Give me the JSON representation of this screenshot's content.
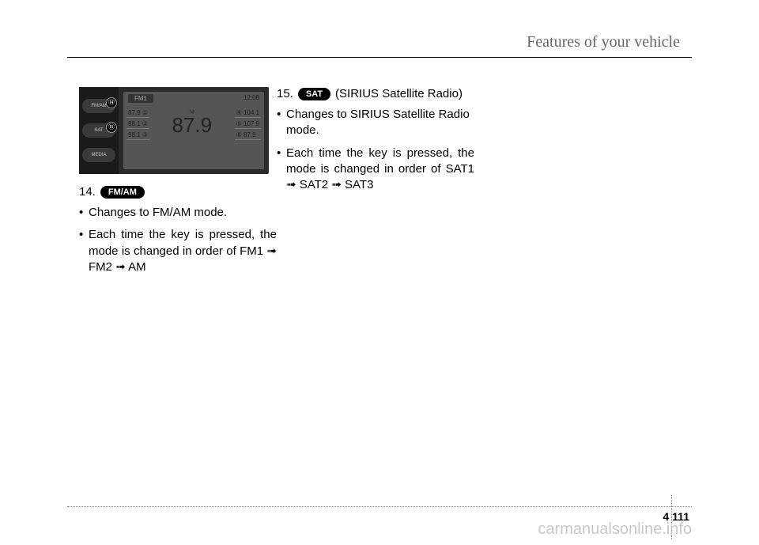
{
  "header": {
    "title": "Features of your vehicle"
  },
  "radio": {
    "buttons": [
      {
        "circle": "⑭",
        "label": "FM/AM"
      },
      {
        "circle": "⑮",
        "label": "SAT"
      },
      {
        "circle": "",
        "label": "MEDIA"
      }
    ],
    "band": "FM1",
    "clock": "12:08",
    "presets_left": [
      "87.9 ①",
      "88.1 ②",
      "98.1 ③"
    ],
    "presets_right": [
      "④ 104.1",
      "⑤ 107.9",
      "⑥ 87.9"
    ],
    "main_freq": "87.9",
    "main_label": "༄"
  },
  "col1": {
    "item_num": "14.",
    "pill": "FM/AM",
    "bullets": [
      "Changes to FM/AM mode.",
      "Each time the key is pressed, the mode is changed in order of FM1 ➟ FM2 ➟ AM"
    ]
  },
  "col2": {
    "item_num": "15.",
    "pill": "SAT",
    "pill_after": "(SIRIUS Satellite Radio)",
    "bullets": [
      "Changes to SIRIUS Satellite Radio mode.",
      "Each time the key is pressed, the mode is changed in order of SAT1 ➟ SAT2 ➟ SAT3"
    ]
  },
  "footer": {
    "section": "4",
    "page": "111",
    "watermark": "carmanualsonline.info"
  }
}
